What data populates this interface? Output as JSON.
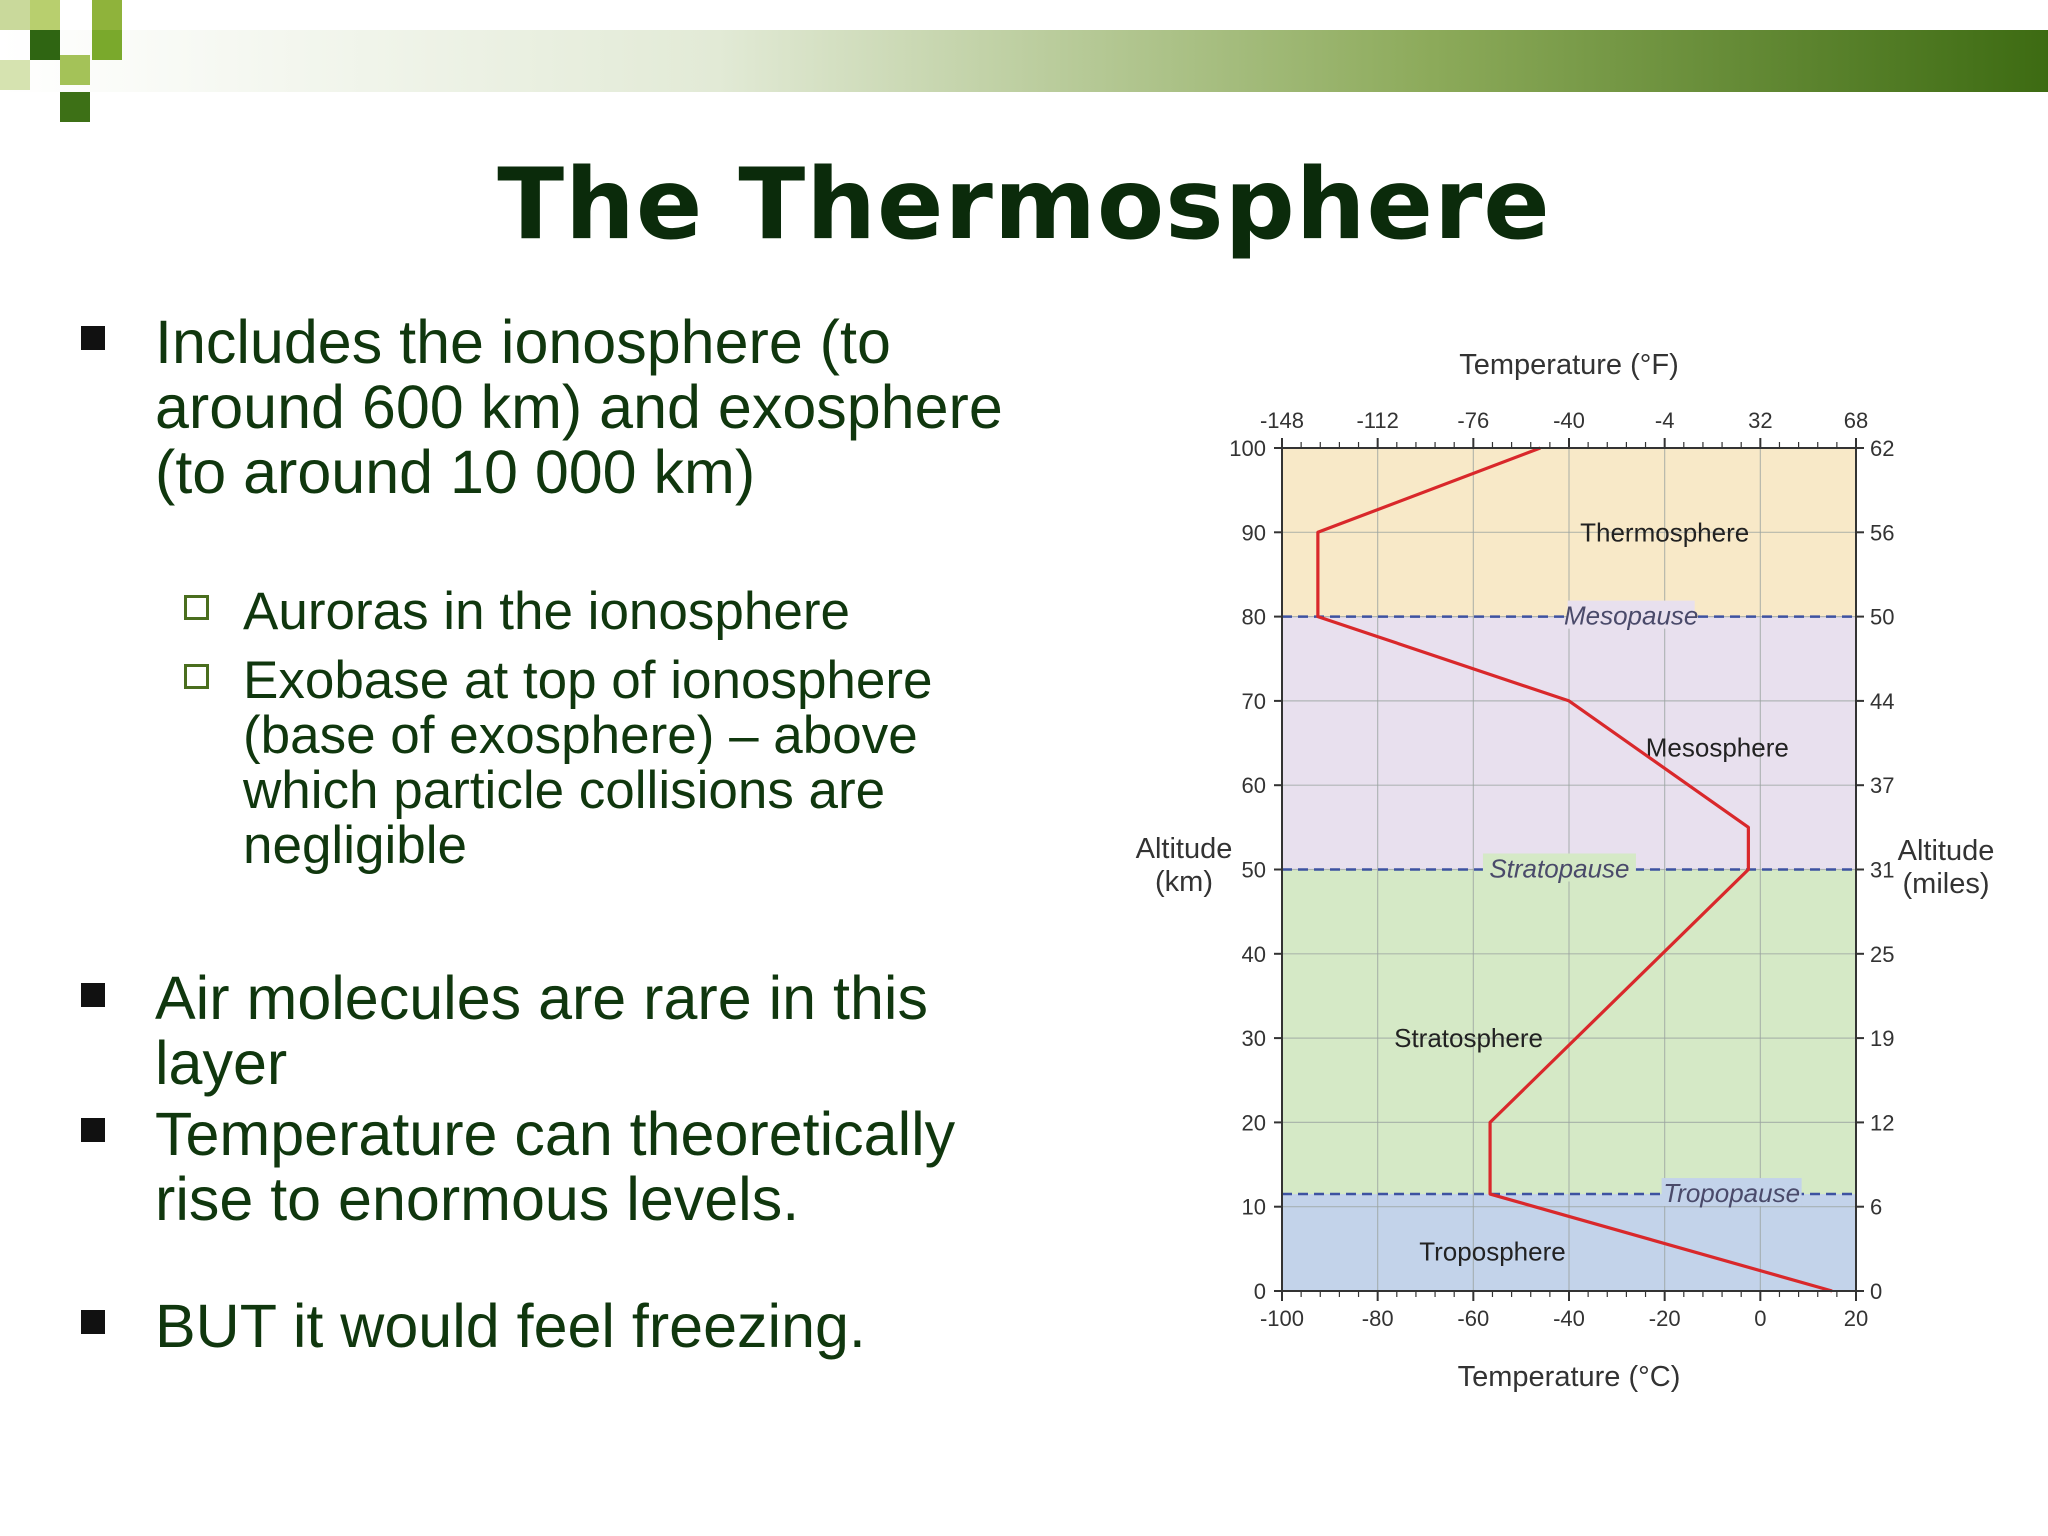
{
  "slide": {
    "title": "The Thermosphere",
    "bullets": [
      {
        "text": "Includes the ionosphere (to around 600 km) and exosphere (to around 10 000 km)",
        "sub": [
          "Auroras in the ionosphere",
          "Exobase at top of ionosphere (base of  exosphere) – above which particle collisions are negligible"
        ]
      },
      {
        "text": "Air molecules are rare in this layer"
      },
      {
        "text": "Temperature can theoretically rise to enormous levels."
      },
      {
        "text": "BUT it would feel freezing."
      }
    ]
  },
  "colors": {
    "title": "#0b2b0b",
    "text": "#10370e",
    "banner_dark": "#3d6b12",
    "thermosphere": "#f8e9c8",
    "mesosphere": "#e8e0ee",
    "stratosphere": "#d5e9c6",
    "troposphere": "#c3d3ea",
    "profile_line": "#d9282b",
    "pause_line": "#3d52a1"
  },
  "chart_data": {
    "type": "line",
    "xlabel_bottom": "Temperature (°C)",
    "xlabel_top": "Temperature (°F)",
    "ylabel_left": "Altitude\n(km)",
    "ylabel_right": "Altitude\n(miles)",
    "xlim": [
      -100,
      20
    ],
    "ylim": [
      0,
      100
    ],
    "x_ticks": [
      -100,
      -80,
      -60,
      -40,
      -20,
      0,
      20
    ],
    "x_tick_labels": [
      "-100",
      "-80",
      "-60",
      "-40",
      "-20",
      "0",
      "20"
    ],
    "top_ticks_c": [
      -100,
      -80,
      -60,
      -40,
      -20,
      0,
      20
    ],
    "top_tick_labels": [
      "-148",
      "-112",
      "-76",
      "-40",
      "-4",
      "32",
      "68"
    ],
    "y_ticks": [
      0,
      10,
      20,
      30,
      40,
      50,
      60,
      70,
      80,
      90,
      100
    ],
    "y_tick_labels": [
      "0",
      "10",
      "20",
      "30",
      "40",
      "50",
      "60",
      "70",
      "80",
      "90",
      "100"
    ],
    "right_tick_labels": [
      "0",
      "6",
      "12",
      "19",
      "25",
      "31",
      "37",
      "44",
      "50",
      "56",
      "62"
    ],
    "grid": true,
    "layers": [
      {
        "name": "Troposphere",
        "from": 0,
        "to": 11.5,
        "color_key": "troposphere",
        "label_x": -56,
        "label_y": 4.7
      },
      {
        "name": "Stratosphere",
        "from": 11.5,
        "to": 50,
        "color_key": "stratosphere",
        "label_x": -61,
        "label_y": 30
      },
      {
        "name": "Mesosphere",
        "from": 50,
        "to": 80,
        "color_key": "mesosphere",
        "label_x": -9,
        "label_y": 64.5
      },
      {
        "name": "Thermosphere",
        "from": 80,
        "to": 100,
        "color_key": "thermosphere",
        "label_x": -20,
        "label_y": 90
      }
    ],
    "pauses": [
      {
        "name": "Tropopause",
        "y": 11.5,
        "label_x": -6
      },
      {
        "name": "Stratopause",
        "y": 50,
        "label_x": -42
      },
      {
        "name": "Mesopause",
        "y": 80,
        "label_x": -27
      }
    ],
    "series": [
      {
        "x": [
          15,
          -56.5,
          -56.5,
          -2.5,
          -2.5,
          -40,
          -92.5,
          -92.5,
          -46
        ],
        "y": [
          0,
          11.5,
          20,
          50,
          55,
          70,
          80,
          90,
          100
        ]
      }
    ]
  }
}
